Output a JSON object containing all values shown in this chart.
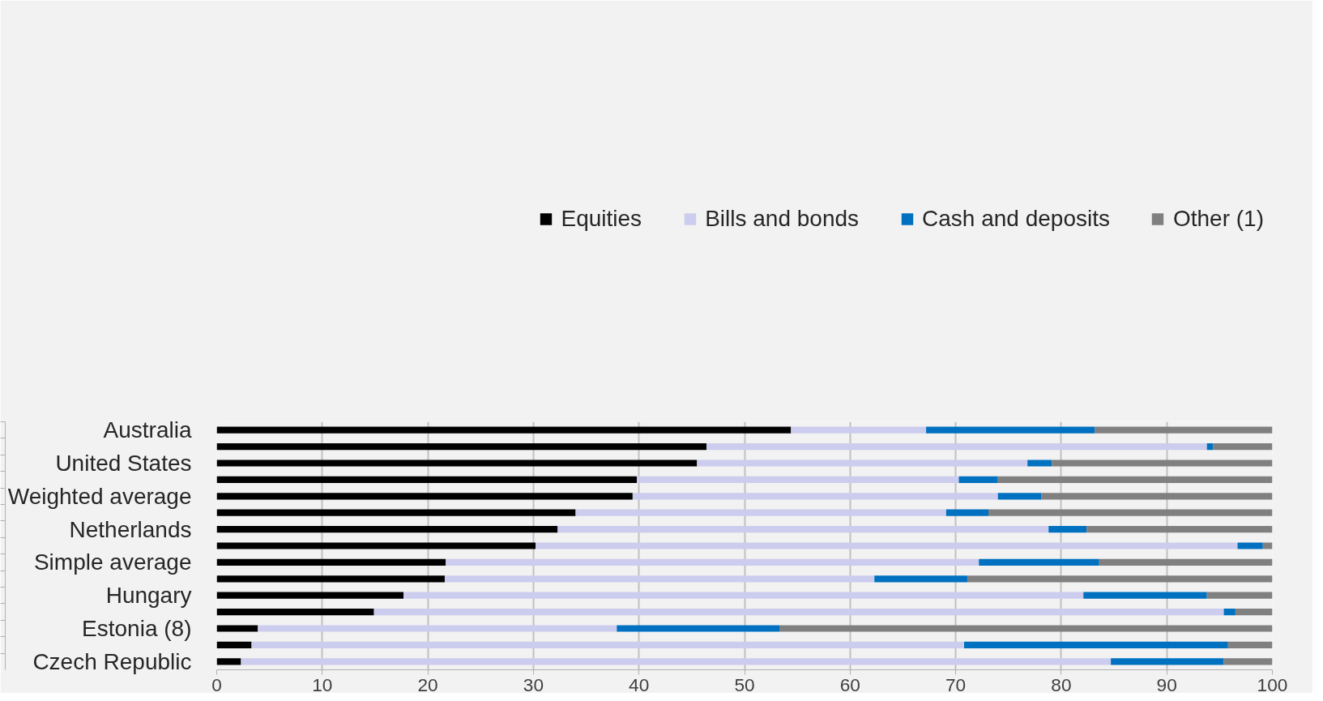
{
  "chart_data": {
    "type": "bar",
    "orientation": "horizontal",
    "stacked": true,
    "categories": [
      "Australia",
      null,
      "United States",
      null,
      "Weighted average",
      null,
      "Netherlands",
      null,
      "Simple average",
      null,
      "Hungary",
      null,
      "Estonia (8)",
      null,
      "Czech Republic"
    ],
    "series": [
      {
        "name": "Equities",
        "color": "#000000",
        "values": [
          54.4,
          46.4,
          45.5,
          39.8,
          39.4,
          34.0,
          32.3,
          30.2,
          21.7,
          21.6,
          17.7,
          14.9,
          3.9,
          3.3,
          2.3
        ]
      },
      {
        "name": "Bills and bonds",
        "color": "#ccccee",
        "values": [
          12.8,
          47.4,
          31.3,
          30.5,
          34.6,
          35.1,
          46.5,
          66.5,
          50.5,
          40.7,
          64.4,
          80.5,
          34.0,
          67.5,
          82.4
        ]
      },
      {
        "name": "Cash and deposits",
        "color": "#0070c0",
        "values": [
          16.0,
          0.6,
          2.3,
          3.7,
          4.1,
          4.0,
          3.6,
          2.4,
          11.4,
          8.8,
          11.7,
          1.1,
          15.4,
          25.0,
          10.7
        ]
      },
      {
        "name": "Other (1)",
        "color": "#808080",
        "values": [
          16.8,
          5.6,
          20.9,
          26.0,
          21.9,
          26.9,
          17.6,
          0.9,
          16.4,
          28.9,
          6.2,
          3.5,
          46.7,
          4.2,
          4.6
        ]
      }
    ],
    "xlim": [
      0,
      100
    ],
    "xticks": [
      0,
      10,
      20,
      30,
      40,
      50,
      60,
      70,
      80,
      90,
      100
    ],
    "grid": "x",
    "legend": "top"
  }
}
